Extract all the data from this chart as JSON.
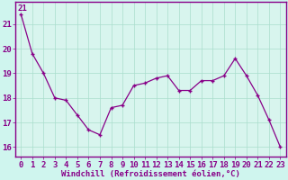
{
  "x": [
    0,
    1,
    2,
    3,
    4,
    5,
    6,
    7,
    8,
    9,
    10,
    11,
    12,
    13,
    14,
    15,
    16,
    17,
    18,
    19,
    20,
    21,
    22,
    23
  ],
  "y": [
    21.4,
    19.8,
    19.0,
    18.0,
    17.9,
    17.3,
    16.7,
    16.5,
    17.6,
    17.7,
    18.5,
    18.6,
    18.8,
    18.9,
    18.3,
    18.3,
    18.7,
    18.7,
    18.9,
    19.6,
    18.9,
    18.1,
    17.1,
    16.0
  ],
  "line_color": "#880088",
  "marker": "+",
  "bg_color": "#cff5ee",
  "plot_bg_color": "#d8f5ee",
  "grid_color": "#aaddcc",
  "xlabel": "Windchill (Refroidissement éolien,°C)",
  "ylabel_ticks": [
    16,
    17,
    18,
    19,
    20,
    21
  ],
  "xlim": [
    -0.5,
    23.5
  ],
  "ylim": [
    15.6,
    21.9
  ],
  "title_text": "21",
  "xlabel_fontsize": 6.5,
  "tick_fontsize": 6.5,
  "border_color": "#880088",
  "spine_color": "#880088"
}
